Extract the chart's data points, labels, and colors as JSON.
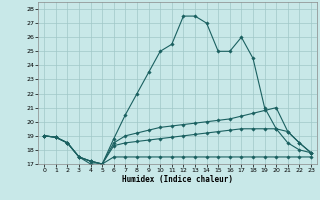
{
  "xlabel": "Humidex (Indice chaleur)",
  "bg_color": "#c8e8e8",
  "grid_color": "#a0c8c8",
  "line_color": "#1a6060",
  "xlim_min": -0.5,
  "xlim_max": 23.5,
  "ylim_min": 17,
  "ylim_max": 28.5,
  "xticks": [
    0,
    1,
    2,
    3,
    4,
    5,
    6,
    7,
    8,
    9,
    10,
    11,
    12,
    13,
    14,
    15,
    16,
    17,
    18,
    19,
    20,
    21,
    22,
    23
  ],
  "yticks": [
    17,
    18,
    19,
    20,
    21,
    22,
    23,
    24,
    25,
    26,
    27,
    28
  ],
  "lines": [
    {
      "x": [
        0,
        1,
        2,
        3,
        4,
        5,
        6,
        7,
        8,
        9,
        10,
        11,
        12,
        13,
        14,
        15,
        16,
        17,
        18,
        19,
        20,
        21,
        22,
        23
      ],
      "y": [
        19.0,
        18.9,
        18.5,
        17.5,
        17.0,
        17.0,
        18.8,
        20.5,
        22.0,
        23.5,
        25.0,
        25.5,
        27.5,
        27.5,
        27.0,
        25.0,
        25.0,
        26.0,
        24.5,
        21.0,
        19.5,
        18.5,
        18.0,
        17.8
      ]
    },
    {
      "x": [
        0,
        1,
        2,
        3,
        4,
        5,
        6,
        7,
        8,
        9,
        10,
        11,
        12,
        13,
        14,
        15,
        16,
        17,
        18,
        19,
        20,
        21,
        22,
        23
      ],
      "y": [
        19.0,
        18.9,
        18.5,
        17.5,
        17.2,
        17.0,
        18.5,
        19.0,
        19.2,
        19.4,
        19.6,
        19.7,
        19.8,
        19.9,
        20.0,
        20.1,
        20.2,
        20.4,
        20.6,
        20.8,
        21.0,
        19.3,
        18.5,
        17.8
      ]
    },
    {
      "x": [
        0,
        1,
        2,
        3,
        4,
        5,
        6,
        7,
        8,
        9,
        10,
        11,
        12,
        13,
        14,
        15,
        16,
        17,
        18,
        19,
        20,
        21,
        22,
        23
      ],
      "y": [
        19.0,
        18.9,
        18.5,
        17.5,
        17.2,
        17.0,
        18.3,
        18.5,
        18.6,
        18.7,
        18.8,
        18.9,
        19.0,
        19.1,
        19.2,
        19.3,
        19.4,
        19.5,
        19.5,
        19.5,
        19.5,
        19.3,
        18.5,
        17.8
      ]
    },
    {
      "x": [
        0,
        1,
        2,
        3,
        4,
        5,
        6,
        7,
        8,
        9,
        10,
        11,
        12,
        13,
        14,
        15,
        16,
        17,
        18,
        19,
        20,
        21,
        22,
        23
      ],
      "y": [
        19.0,
        18.9,
        18.5,
        17.5,
        17.2,
        17.0,
        17.5,
        17.5,
        17.5,
        17.5,
        17.5,
        17.5,
        17.5,
        17.5,
        17.5,
        17.5,
        17.5,
        17.5,
        17.5,
        17.5,
        17.5,
        17.5,
        17.5,
        17.5
      ]
    }
  ]
}
